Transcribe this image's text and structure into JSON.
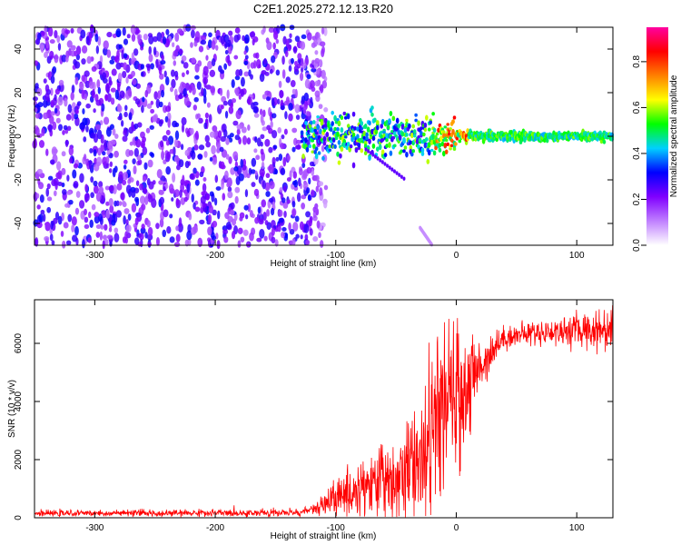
{
  "title": "C2E1.2025.272.12.13.R20",
  "chart_data": [
    {
      "type": "heatmap",
      "name": "spectrogram",
      "xlabel": "Height of straight line (km)",
      "ylabel": "Frequency (Hz)",
      "xlim": [
        -350,
        130
      ],
      "ylim": [
        -50,
        50
      ],
      "xticks": [
        -300,
        -200,
        -100,
        0,
        100
      ],
      "yticks": [
        -40,
        -20,
        0,
        20,
        40
      ],
      "colorbar": {
        "label": "Normalized spectral amplitude",
        "range": [
          0,
          0.95
        ],
        "ticks": [
          0.0,
          0.2,
          0.4,
          0.6,
          0.8
        ],
        "tick_labels": [
          "0.0",
          "0.2",
          "0.4",
          "0.6",
          "0.8"
        ],
        "colors": [
          "#ffffff",
          "#c080ff",
          "#8000ff",
          "#0000ff",
          "#00d0ff",
          "#00ff00",
          "#ffff00",
          "#ff8000",
          "#ff0000",
          "#ff00a0"
        ]
      },
      "features": {
        "noise_region_x": [
          -350,
          -118
        ],
        "signal_band_center_hz": 0,
        "signal_band_halfwidth_hz": 3,
        "signal_start_x": -128,
        "signal_end_x": 130,
        "secondary_trace": {
          "x_start": -75,
          "x_end": -42,
          "f_start": -6,
          "f_end": -20
        },
        "faint_trace": {
          "x_start": -30,
          "x_end": -20,
          "f_start": -42,
          "f_end": -50
        }
      }
    },
    {
      "type": "line",
      "name": "snr",
      "color": "#ff0000",
      "xlabel": "Height of straight line (km)",
      "ylabel": "SNR (10 * v/v)",
      "xlim": [
        -350,
        130
      ],
      "ylim": [
        0,
        7500
      ],
      "xticks": [
        -300,
        -200,
        -100,
        0,
        100
      ],
      "yticks": [
        0,
        2000,
        4000,
        6000
      ],
      "trend": {
        "x": [
          -350,
          -200,
          -130,
          -110,
          -95,
          -80,
          -60,
          -45,
          -30,
          -20,
          -10,
          0,
          10,
          20,
          30,
          40,
          60,
          80,
          100,
          130
        ],
        "y": [
          150,
          160,
          180,
          400,
          800,
          1000,
          1300,
          1500,
          2200,
          3000,
          3800,
          4100,
          4500,
          5200,
          5800,
          6200,
          6350,
          6400,
          6450,
          6500
        ]
      },
      "noise_amplitude": {
        "x": [
          -350,
          -120,
          -110,
          -80,
          -40,
          -20,
          0,
          10,
          20,
          40,
          80,
          130
        ],
        "y": [
          90,
          120,
          400,
          900,
          1600,
          2400,
          2400,
          1800,
          800,
          350,
          400,
          700
        ]
      }
    }
  ]
}
